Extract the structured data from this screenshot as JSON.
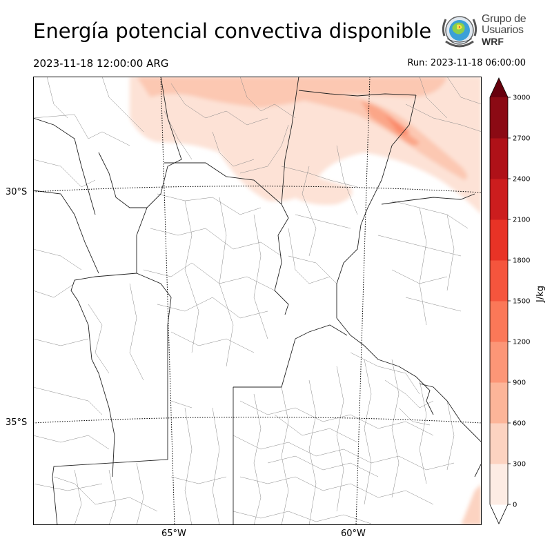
{
  "header": {
    "title": "Energía potencial convectiva disponible",
    "valid_time": "2023-11-18 12:00:00 ARG",
    "run_time": "Run: 2023-11-18 06:00:00"
  },
  "logo": {
    "line1": "Grupo de",
    "line2": "Usuarios",
    "line3": "WRF"
  },
  "map": {
    "lat_labels": [
      "30°S",
      "35°S"
    ],
    "lon_labels": [
      "65°W",
      "60°W"
    ]
  },
  "colorbar": {
    "unit": "J/kg",
    "ticks": [
      "0",
      "300",
      "600",
      "900",
      "1200",
      "1500",
      "1800",
      "2100",
      "2400",
      "2700",
      "3000"
    ],
    "colors": [
      "#fdece4",
      "#fcd3c1",
      "#fcb599",
      "#fc9677",
      "#fb7858",
      "#f5553d",
      "#e83326",
      "#cc1d1e",
      "#af1118",
      "#8b0a14",
      "#67000d"
    ],
    "extend": "both"
  }
}
